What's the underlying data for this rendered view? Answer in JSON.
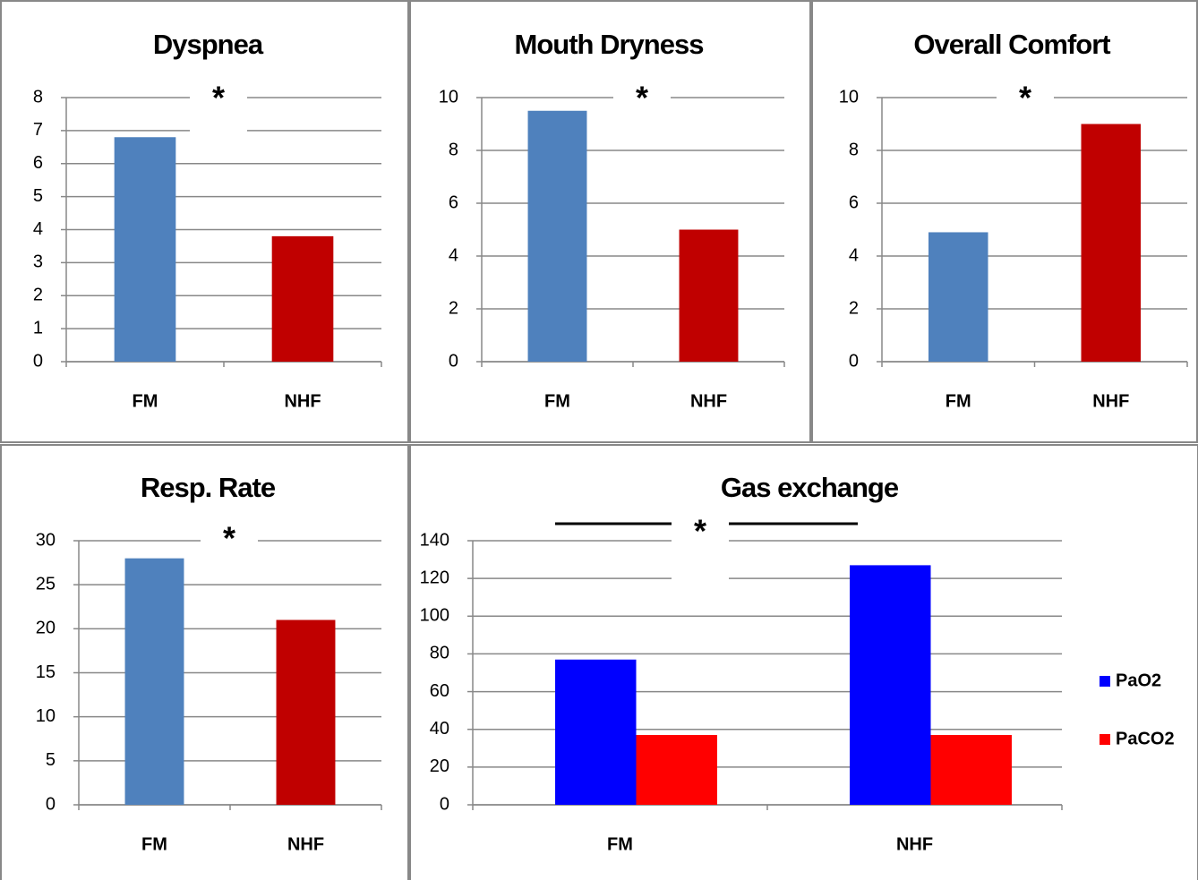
{
  "chart_data": [
    {
      "type": "bar",
      "title": "Dyspnea",
      "annotation": "*",
      "categories": [
        "FM",
        "NHF"
      ],
      "values": [
        6.8,
        3.8
      ],
      "colors": [
        "#4f81bd",
        "#c00000"
      ],
      "ylim": [
        0,
        8
      ],
      "yticks": [
        0,
        1,
        2,
        3,
        4,
        5,
        6,
        7,
        8
      ],
      "grid": true
    },
    {
      "type": "bar",
      "title": "Mouth Dryness",
      "annotation": "*",
      "categories": [
        "FM",
        "NHF"
      ],
      "values": [
        9.5,
        5.0
      ],
      "colors": [
        "#4f81bd",
        "#c00000"
      ],
      "ylim": [
        0,
        10
      ],
      "yticks": [
        0,
        2,
        4,
        6,
        8,
        10
      ],
      "grid": true
    },
    {
      "type": "bar",
      "title": "Overall Comfort",
      "annotation": "*",
      "categories": [
        "FM",
        "NHF"
      ],
      "values": [
        4.9,
        9.0
      ],
      "colors": [
        "#4f81bd",
        "#c00000"
      ],
      "ylim": [
        0,
        10
      ],
      "yticks": [
        0,
        2,
        4,
        6,
        8,
        10
      ],
      "grid": true
    },
    {
      "type": "bar",
      "title": "Resp. Rate",
      "annotation": "*",
      "categories": [
        "FM",
        "NHF"
      ],
      "values": [
        28,
        21
      ],
      "colors": [
        "#4f81bd",
        "#c00000"
      ],
      "ylim": [
        0,
        30
      ],
      "yticks": [
        0,
        5,
        10,
        15,
        20,
        25,
        30
      ],
      "grid": true
    },
    {
      "type": "bar",
      "title": "Gas exchange",
      "annotation": "*",
      "categories": [
        "FM",
        "NHF"
      ],
      "series": [
        {
          "name": "PaO2",
          "color": "#0000ff",
          "values": [
            77,
            127
          ]
        },
        {
          "name": "PaCO2",
          "color": "#ff0000",
          "values": [
            37,
            37
          ]
        }
      ],
      "ylim": [
        0,
        140
      ],
      "yticks": [
        0,
        20,
        40,
        60,
        80,
        100,
        120,
        140
      ],
      "grid": true,
      "legend": "right"
    }
  ]
}
